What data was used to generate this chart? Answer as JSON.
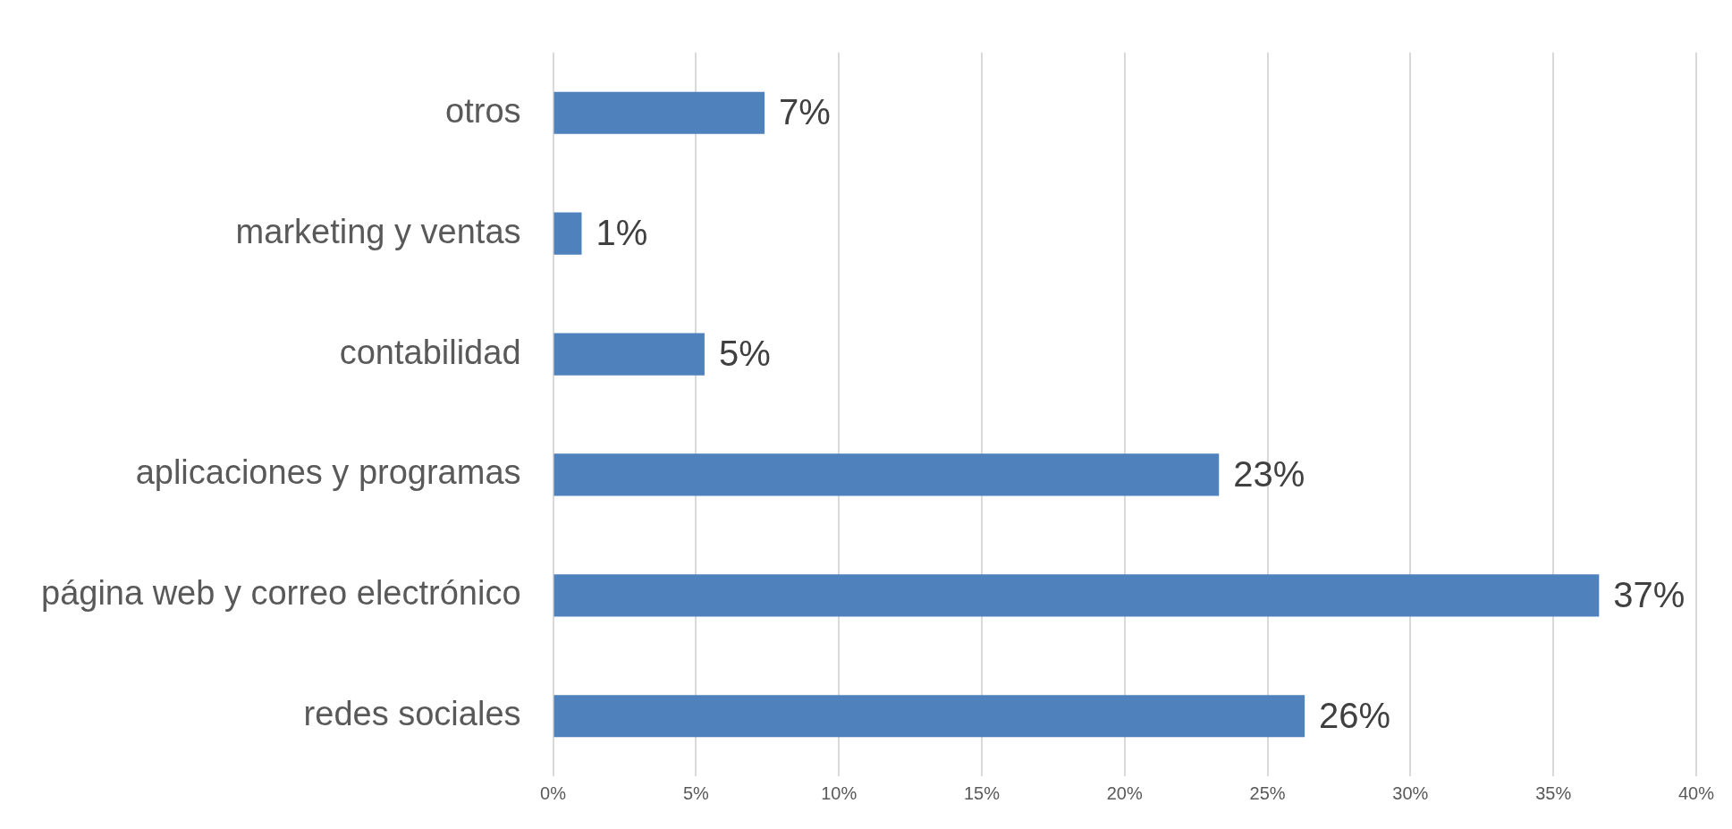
{
  "chart_data": {
    "type": "bar",
    "orientation": "horizontal",
    "categories": [
      "otros",
      "marketing y ventas",
      "contabilidad",
      "aplicaciones y programas",
      "página web y correo electrónico",
      "redes sociales"
    ],
    "values": [
      7.4,
      1.0,
      5.3,
      23.3,
      36.6,
      26.3
    ],
    "value_labels": [
      "7%",
      "1%",
      "5%",
      "23%",
      "37%",
      "26%"
    ],
    "color": "#4f81bd",
    "xlim": [
      0,
      40
    ],
    "xticks": [
      {
        "value": 0,
        "label": "0%"
      },
      {
        "value": 5,
        "label": "5%"
      },
      {
        "value": 10,
        "label": "10%"
      },
      {
        "value": 15,
        "label": "15%"
      },
      {
        "value": 20,
        "label": "20%"
      },
      {
        "value": 25,
        "label": "25%"
      },
      {
        "value": 30,
        "label": "30%"
      },
      {
        "value": 35,
        "label": "35%"
      },
      {
        "value": 40,
        "label": "40%"
      }
    ],
    "grid": "x",
    "legend": false
  }
}
